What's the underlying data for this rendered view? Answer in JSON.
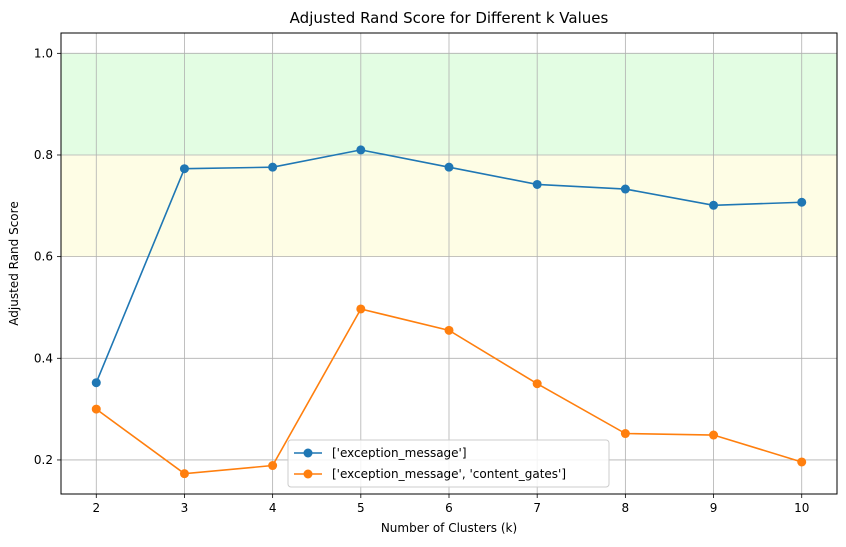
{
  "chart_data": {
    "type": "line",
    "title": "Adjusted Rand Score for Different k Values",
    "xlabel": "Number of Clusters (k)",
    "ylabel": "Adjusted Rand Score",
    "x": [
      2,
      3,
      4,
      5,
      6,
      7,
      8,
      9,
      10
    ],
    "xlim": [
      1.6,
      10.4
    ],
    "ylim": [
      0.133,
      1.04
    ],
    "yticks": [
      0.2,
      0.4,
      0.6,
      0.8,
      1.0
    ],
    "ytick_labels": [
      "0.2",
      "0.4",
      "0.6",
      "0.8",
      "1.0"
    ],
    "xticks": [
      2,
      3,
      4,
      5,
      6,
      7,
      8,
      9,
      10
    ],
    "xtick_labels": [
      "2",
      "3",
      "4",
      "5",
      "6",
      "7",
      "8",
      "9",
      "10"
    ],
    "grid": true,
    "legend_position": "bottom-center",
    "bands": [
      {
        "y0": 0.8,
        "y1": 1.0,
        "color": "#e3fde3"
      },
      {
        "y0": 0.6,
        "y1": 0.8,
        "color": "#fefde5"
      }
    ],
    "series": [
      {
        "name": "['exception_message']",
        "color": "#1f77b4",
        "values": [
          0.352,
          0.773,
          0.776,
          0.81,
          0.776,
          0.742,
          0.733,
          0.701,
          0.707
        ]
      },
      {
        "name": "['exception_message', 'content_gates']",
        "color": "#ff7f0e",
        "values": [
          0.3,
          0.173,
          0.189,
          0.497,
          0.455,
          0.35,
          0.252,
          0.249,
          0.196
        ]
      }
    ]
  }
}
